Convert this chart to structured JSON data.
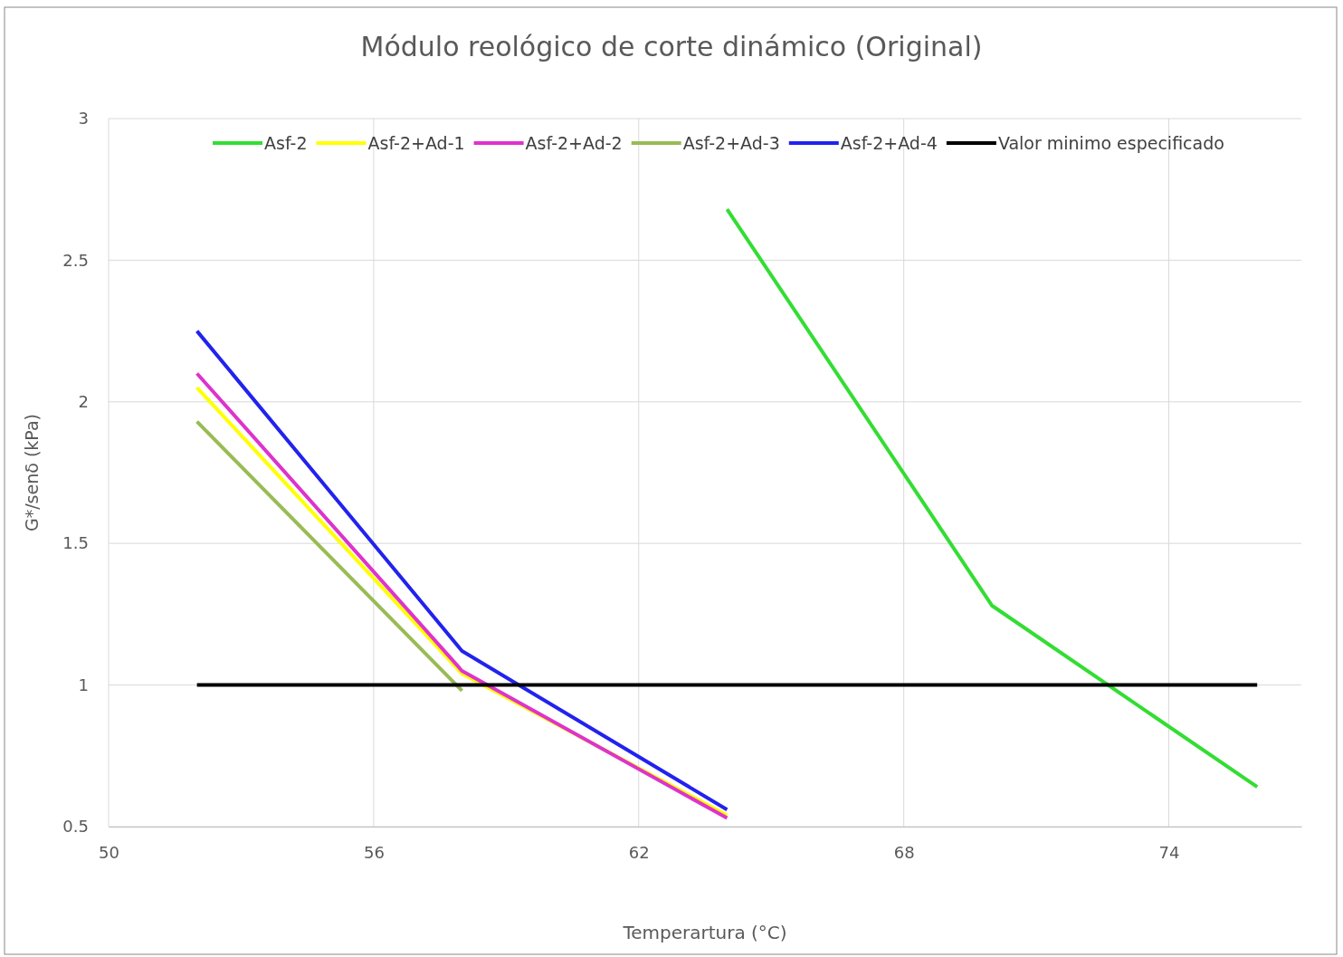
{
  "chart_data": {
    "type": "line",
    "title": "Módulo reológico de corte dinámico (Original)",
    "xlabel": "Temperartura (°C)",
    "ylabel": "G*/senδ (kPa)",
    "x": [
      52,
      58,
      64
    ],
    "series": [
      {
        "name": "Asf-2",
        "color": "#33dd33",
        "x": [
          64,
          70,
          76
        ],
        "values": [
          2.68,
          1.28,
          0.64
        ]
      },
      {
        "name": "Asf-2+Ad-1",
        "color": "#ffff00",
        "values": [
          2.05,
          1.04,
          0.54
        ]
      },
      {
        "name": "Asf-2+Ad-2",
        "color": "#dd33cc",
        "values": [
          2.1,
          1.05,
          0.53
        ]
      },
      {
        "name": "Asf-2+Ad-3",
        "color": "#99bb55",
        "x": [
          52,
          58
        ],
        "values": [
          1.93,
          0.98
        ]
      },
      {
        "name": "Asf-2+Ad-4",
        "color": "#2222ee",
        "values": [
          2.25,
          1.12,
          0.56
        ]
      },
      {
        "name": "Valor minimo especificado",
        "color": "#000000",
        "x": [
          52,
          76
        ],
        "values": [
          1,
          1
        ]
      }
    ],
    "xlim": [
      50,
      77
    ],
    "xticks": [
      50,
      56,
      62,
      68,
      74
    ],
    "ylim": [
      0.5,
      3
    ],
    "yticks": [
      0.5,
      1,
      1.5,
      2,
      2.5,
      3
    ],
    "grid": true,
    "legend": "top"
  }
}
